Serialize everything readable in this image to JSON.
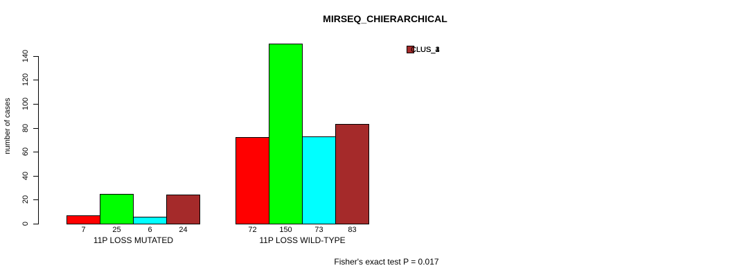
{
  "title": "MIRSEQ_CHIERARCHICAL",
  "ylabel": "number of cases",
  "footer": "Fisher's exact test P = 0.017",
  "chart_data": {
    "type": "bar",
    "title": "MIRSEQ_CHIERARCHICAL",
    "xlabel": "",
    "ylabel": "number of cases",
    "categories": [
      "11P LOSS MUTATED",
      "11P LOSS WILD-TYPE"
    ],
    "series": [
      {
        "name": "CLUS_1",
        "color": "#FF0000",
        "values": [
          7,
          72
        ]
      },
      {
        "name": "CLUS_2",
        "color": "#00FF00",
        "values": [
          25,
          150
        ]
      },
      {
        "name": "CLUS_3",
        "color": "#00FFFF",
        "values": [
          6,
          73
        ]
      },
      {
        "name": "CLUS_4",
        "color": "#A52A2A",
        "values": [
          24,
          83
        ]
      }
    ],
    "bar_value_labels": [
      [
        "7",
        "25",
        "6",
        "24"
      ],
      [
        "72",
        "150",
        "73",
        "83"
      ]
    ],
    "yticks": [
      0,
      20,
      40,
      60,
      80,
      100,
      120,
      140
    ],
    "ylim": [
      0,
      150
    ],
    "grid": false,
    "legend_position": "top-right",
    "annotation": "Fisher's exact test P = 0.017"
  }
}
